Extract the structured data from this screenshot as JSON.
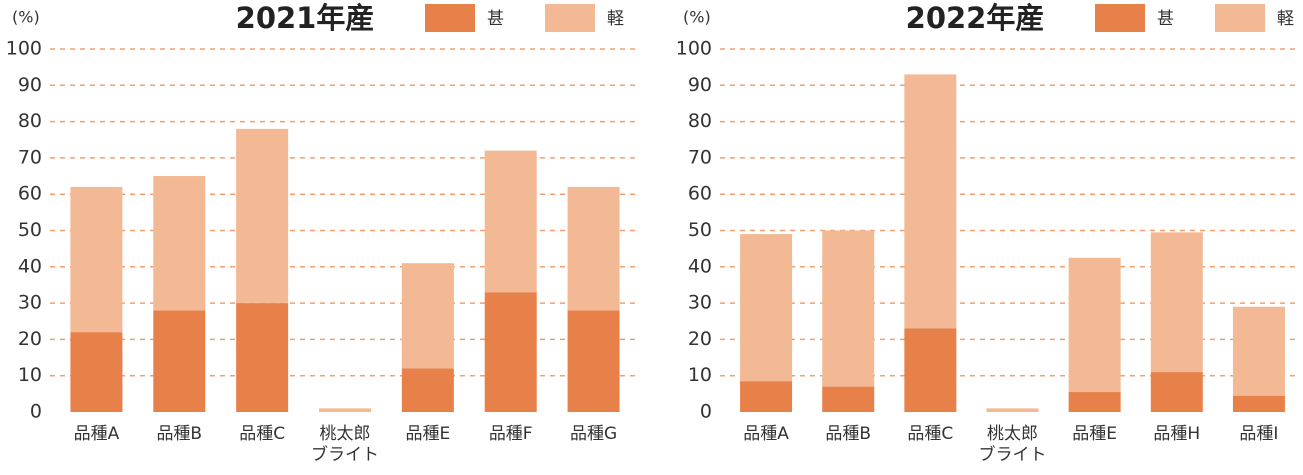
{
  "chart_data": [
    {
      "type": "bar",
      "stacked": true,
      "title": "2021年産",
      "y_label": "(%)",
      "categories": [
        "品種A",
        "品種B",
        "品種C",
        "桃太郎\nブライト",
        "品種E",
        "品種F",
        "品種G"
      ],
      "series": [
        {
          "name": "甚",
          "color": "#e8804a",
          "values": [
            22,
            28,
            30,
            0,
            12,
            33,
            28
          ]
        },
        {
          "name": "軽",
          "color": "#f2b994",
          "values": [
            40,
            37,
            48,
            1,
            29,
            39,
            34
          ]
        }
      ],
      "ylim": [
        0,
        100
      ],
      "yticks": [
        0,
        10,
        20,
        30,
        40,
        50,
        60,
        70,
        80,
        90,
        100
      ],
      "grid": true
    },
    {
      "type": "bar",
      "stacked": true,
      "title": "2022年産",
      "y_label": "(%)",
      "categories": [
        "品種A",
        "品種B",
        "品種C",
        "桃太郎\nブライト",
        "品種E",
        "品種H",
        "品種I"
      ],
      "series": [
        {
          "name": "甚",
          "color": "#e8804a",
          "values": [
            8.5,
            7,
            23,
            0,
            5.5,
            11,
            4.5
          ]
        },
        {
          "name": "軽",
          "color": "#f2b994",
          "values": [
            40.5,
            43,
            70,
            1,
            37,
            38.5,
            24.5
          ]
        }
      ],
      "ylim": [
        0,
        100
      ],
      "yticks": [
        0,
        10,
        20,
        30,
        40,
        50,
        60,
        70,
        80,
        90,
        100
      ],
      "grid": true
    }
  ]
}
